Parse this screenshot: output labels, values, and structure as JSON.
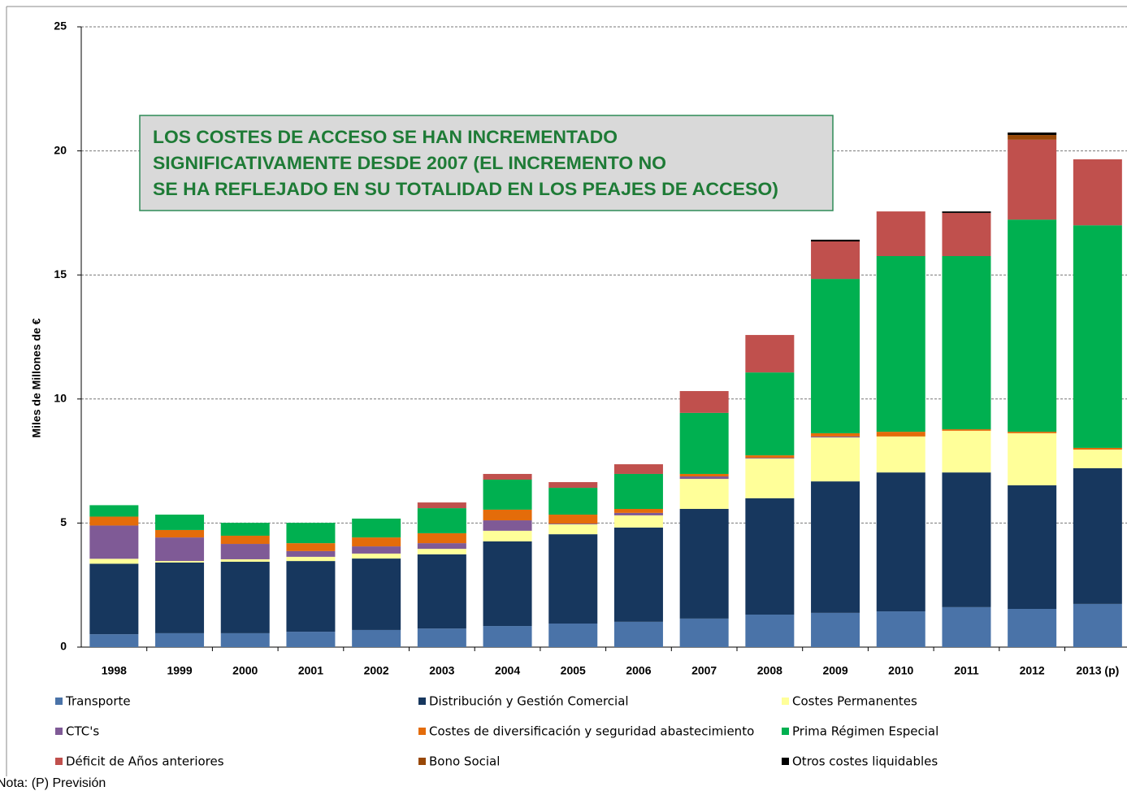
{
  "chart_data": {
    "type": "stacked_bar",
    "ylabel": "Miles de Millones de €",
    "annotation": [
      "LOS COSTES DE ACCESO SE HAN INCREMENTADO",
      "SIGNIFICATIVAMENTE DESDE 2007 (EL INCREMENTO NO",
      "SE HA REFLEJADO EN SU TOTALIDAD EN LOS  PEAJES DE ACCESO)"
    ],
    "note": "Nota: (P) Previsión",
    "categories": [
      "1998",
      "1999",
      "2000",
      "2001",
      "2002",
      "2003",
      "2004",
      "2005",
      "2006",
      "2007",
      "2008",
      "2009",
      "2010",
      "2011",
      "2012",
      "2013 (p)"
    ],
    "ylim": [
      0,
      25
    ],
    "yticks": [
      0,
      5,
      10,
      15,
      20,
      25
    ],
    "grid": true,
    "series": [
      {
        "name": "Transporte",
        "color": "#4a73a8",
        "values": [
          0.52,
          0.56,
          0.56,
          0.62,
          0.69,
          0.75,
          0.85,
          0.95,
          1.02,
          1.15,
          1.31,
          1.38,
          1.44,
          1.61,
          1.54,
          1.74
        ]
      },
      {
        "name": "Distribución y Gestión Comercial",
        "color": "#17375e",
        "values": [
          2.84,
          2.85,
          2.88,
          2.85,
          2.88,
          2.99,
          3.41,
          3.6,
          3.8,
          4.42,
          4.69,
          5.3,
          5.6,
          5.43,
          4.98,
          5.47
        ]
      },
      {
        "name": "Costes Permanentes",
        "color": "#ffff99",
        "values": [
          0.2,
          0.06,
          0.1,
          0.17,
          0.2,
          0.22,
          0.43,
          0.4,
          0.49,
          1.21,
          1.6,
          1.77,
          1.45,
          1.68,
          2.1,
          0.75
        ]
      },
      {
        "name": "CTC's",
        "color": "#7f5a96",
        "values": [
          1.34,
          0.95,
          0.62,
          0.23,
          0.29,
          0.23,
          0.42,
          0.03,
          0.1,
          0.1,
          0.03,
          0.04,
          0,
          0,
          0,
          0
        ]
      },
      {
        "name": "Costes de diversificación y seguridad abastecimiento",
        "color": "#e46c0a",
        "values": [
          0.36,
          0.3,
          0.33,
          0.32,
          0.36,
          0.4,
          0.43,
          0.36,
          0.16,
          0.1,
          0.1,
          0.13,
          0.19,
          0.06,
          0.06,
          0.07
        ]
      },
      {
        "name": "Prima Régimen Especial",
        "color": "#00b050",
        "values": [
          0.46,
          0.62,
          0.52,
          0.82,
          0.76,
          1.01,
          1.21,
          1.08,
          1.41,
          2.46,
          3.34,
          6.22,
          7.08,
          6.98,
          8.55,
          8.97
        ]
      },
      {
        "name": "Déficit de Años anteriores",
        "color": "#c0504d",
        "values": [
          0,
          0,
          0,
          0,
          0,
          0.23,
          0.23,
          0.23,
          0.39,
          0.88,
          1.51,
          1.51,
          1.8,
          1.74,
          3.22,
          2.66
        ]
      },
      {
        "name": "Bono Social",
        "color": "#984807",
        "values": [
          0,
          0,
          0,
          0,
          0,
          0,
          0,
          0,
          0,
          0,
          0,
          0,
          0,
          0,
          0.19,
          0
        ]
      },
      {
        "name": "Otros costes liquidables",
        "color": "#000000",
        "values": [
          0,
          0,
          0,
          0,
          0,
          0,
          0,
          0,
          0,
          0,
          0,
          0.07,
          0,
          0.06,
          0.1,
          0
        ]
      }
    ]
  }
}
